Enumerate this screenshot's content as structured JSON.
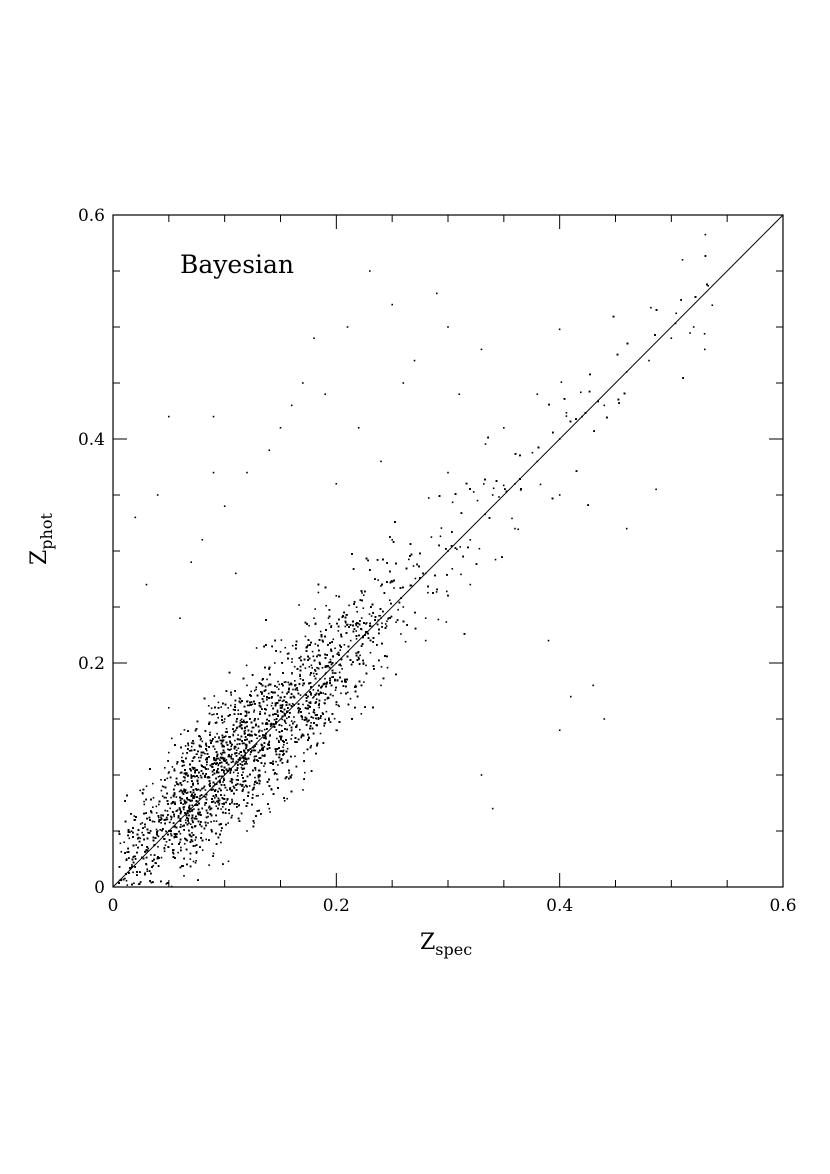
{
  "chart_data": {
    "type": "scatter",
    "annotation": "Bayesian",
    "xlabel": {
      "main": "Z",
      "sub": "spec"
    },
    "ylabel": {
      "main": "Z",
      "sub": "phot"
    },
    "xlim": [
      0,
      0.6
    ],
    "ylim": [
      0,
      0.6
    ],
    "x_ticks": [
      {
        "value": 0,
        "label": "0"
      },
      {
        "value": 0.2,
        "label": "0.2"
      },
      {
        "value": 0.4,
        "label": "0.4"
      },
      {
        "value": 0.6,
        "label": "0.6"
      }
    ],
    "y_ticks": [
      {
        "value": 0,
        "label": "0"
      },
      {
        "value": 0.2,
        "label": "0.2"
      },
      {
        "value": 0.4,
        "label": "0.4"
      },
      {
        "value": 0.6,
        "label": "0.6"
      }
    ],
    "minor_tick_step": 0.05,
    "reference_line": {
      "x": [
        0,
        0.6
      ],
      "y": [
        0,
        0.6
      ]
    },
    "marker_color": "#000000",
    "grid": false,
    "series": [
      {
        "points": [
          [
            0.02,
            0.06
          ],
          [
            0.03,
            0.09
          ],
          [
            0.04,
            0.05
          ],
          [
            0.05,
            0.12
          ],
          [
            0.06,
            0.08
          ],
          [
            0.07,
            0.1
          ],
          [
            0.08,
            0.13
          ],
          [
            0.09,
            0.09
          ],
          [
            0.1,
            0.12
          ],
          [
            0.11,
            0.14
          ],
          [
            0.12,
            0.11
          ],
          [
            0.13,
            0.15
          ],
          [
            0.14,
            0.13
          ],
          [
            0.15,
            0.16
          ],
          [
            0.16,
            0.14
          ],
          [
            0.17,
            0.18
          ],
          [
            0.18,
            0.17
          ],
          [
            0.19,
            0.19
          ],
          [
            0.2,
            0.2
          ],
          [
            0.22,
            0.21
          ],
          [
            0.24,
            0.24
          ],
          [
            0.26,
            0.25
          ],
          [
            0.28,
            0.28
          ],
          [
            0.3,
            0.3
          ],
          [
            0.32,
            0.31
          ],
          [
            0.34,
            0.35
          ],
          [
            0.36,
            0.36
          ],
          [
            0.38,
            0.38
          ],
          [
            0.4,
            0.4
          ],
          [
            0.42,
            0.42
          ],
          [
            0.44,
            0.43
          ],
          [
            0.46,
            0.46
          ],
          [
            0.48,
            0.47
          ],
          [
            0.5,
            0.49
          ],
          [
            0.52,
            0.5
          ],
          [
            0.53,
            0.48
          ],
          [
            0.06,
            0.04
          ],
          [
            0.08,
            0.07
          ],
          [
            0.1,
            0.15
          ],
          [
            0.12,
            0.18
          ],
          [
            0.05,
            0.16
          ],
          [
            0.15,
            0.21
          ],
          [
            0.18,
            0.24
          ],
          [
            0.2,
            0.26
          ],
          [
            0.25,
            0.31
          ],
          [
            0.3,
            0.37
          ],
          [
            0.35,
            0.41
          ],
          [
            0.38,
            0.44
          ],
          [
            0.32,
            0.27
          ],
          [
            0.36,
            0.32
          ],
          [
            0.4,
            0.35
          ],
          [
            0.28,
            0.22
          ],
          [
            0.24,
            0.18
          ],
          [
            0.2,
            0.14
          ],
          [
            0.16,
            0.1
          ],
          [
            0.14,
            0.07
          ],
          [
            0.12,
            0.05
          ],
          [
            0.09,
            0.03
          ],
          [
            0.03,
            0.02
          ],
          [
            0.01,
            0.04
          ]
        ]
      },
      {
        "points": [
          [
            0.18,
            0.49
          ],
          [
            0.21,
            0.5
          ],
          [
            0.23,
            0.55
          ],
          [
            0.25,
            0.52
          ],
          [
            0.27,
            0.47
          ],
          [
            0.29,
            0.53
          ],
          [
            0.16,
            0.43
          ],
          [
            0.22,
            0.41
          ],
          [
            0.26,
            0.45
          ],
          [
            0.14,
            0.39
          ],
          [
            0.2,
            0.36
          ],
          [
            0.09,
            0.42
          ],
          [
            0.12,
            0.37
          ],
          [
            0.24,
            0.38
          ],
          [
            0.31,
            0.44
          ],
          [
            0.33,
            0.48
          ],
          [
            0.3,
            0.5
          ],
          [
            0.19,
            0.44
          ],
          [
            0.15,
            0.41
          ],
          [
            0.17,
            0.45
          ],
          [
            0.34,
            0.07
          ],
          [
            0.43,
            0.18
          ],
          [
            0.41,
            0.17
          ],
          [
            0.44,
            0.15
          ],
          [
            0.4,
            0.14
          ],
          [
            0.39,
            0.22
          ],
          [
            0.46,
            0.32
          ],
          [
            0.51,
            0.56
          ],
          [
            0.28,
            0.24
          ],
          [
            0.33,
            0.1
          ],
          [
            0.04,
            0.35
          ],
          [
            0.05,
            0.42
          ],
          [
            0.07,
            0.29
          ],
          [
            0.03,
            0.27
          ],
          [
            0.08,
            0.31
          ],
          [
            0.02,
            0.33
          ],
          [
            0.1,
            0.34
          ],
          [
            0.06,
            0.24
          ],
          [
            0.09,
            0.37
          ],
          [
            0.11,
            0.28
          ]
        ]
      }
    ]
  }
}
